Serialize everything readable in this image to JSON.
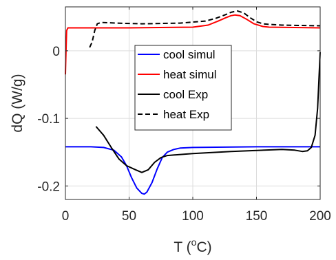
{
  "chart_data": {
    "type": "line",
    "title": "",
    "xlabel": {
      "prefix": "T (",
      "superscript": "o",
      "suffix": "C)"
    },
    "ylabel": "dQ (W/g)",
    "xlim": [
      0,
      200
    ],
    "ylim": [
      -0.22,
      0.065
    ],
    "xticks": [
      0,
      50,
      100,
      150,
      200
    ],
    "xtick_labels": [
      "0",
      "50",
      "100",
      "150",
      "200"
    ],
    "yticks": [
      0,
      -0.1,
      -0.2
    ],
    "ytick_labels": [
      "0",
      "-0.1",
      "-0.2"
    ],
    "grid": true,
    "legend_position": "center",
    "series": [
      {
        "name": "cool simul",
        "color": "#0000ff",
        "style": "solid",
        "x": [
          0,
          20,
          30,
          38,
          44,
          48,
          52,
          56,
          60,
          62,
          64,
          68,
          72,
          76,
          80,
          85,
          90,
          100,
          150,
          199,
          199.8
        ],
        "y": [
          -0.142,
          -0.142,
          -0.143,
          -0.147,
          -0.157,
          -0.17,
          -0.188,
          -0.203,
          -0.211,
          -0.212,
          -0.209,
          -0.195,
          -0.175,
          -0.158,
          -0.15,
          -0.146,
          -0.144,
          -0.143,
          -0.142,
          -0.142,
          -0.142
        ]
      },
      {
        "name": "heat simul",
        "color": "#ff0000",
        "style": "solid",
        "x": [
          0,
          0.5,
          1,
          2,
          5,
          50,
          100,
          112,
          120,
          126,
          130,
          133,
          137,
          142,
          148,
          155,
          160,
          200
        ],
        "y": [
          -0.035,
          0.0,
          0.03,
          0.034,
          0.034,
          0.034,
          0.035,
          0.038,
          0.044,
          0.049,
          0.052,
          0.053,
          0.052,
          0.047,
          0.04,
          0.036,
          0.035,
          0.034
        ]
      },
      {
        "name": "cool Exp",
        "color": "#000000",
        "style": "solid",
        "x": [
          24,
          30,
          36,
          42,
          48,
          55,
          60,
          65,
          70,
          75,
          80,
          100,
          130,
          170,
          180,
          186,
          190,
          193,
          196,
          198,
          199,
          200
        ],
        "y": [
          -0.112,
          -0.125,
          -0.143,
          -0.16,
          -0.17,
          -0.176,
          -0.18,
          -0.176,
          -0.165,
          -0.158,
          -0.155,
          -0.152,
          -0.149,
          -0.146,
          -0.147,
          -0.149,
          -0.148,
          -0.143,
          -0.125,
          -0.085,
          -0.045,
          -0.002
        ]
      },
      {
        "name": "heat Exp",
        "color": "#000000",
        "style": "dashed",
        "x": [
          19,
          21,
          23,
          25,
          28,
          40,
          60,
          90,
          110,
          118,
          125,
          130,
          135,
          140,
          145,
          150,
          155,
          160,
          170,
          200
        ],
        "y": [
          0.005,
          0.013,
          0.03,
          0.04,
          0.042,
          0.041,
          0.04,
          0.041,
          0.044,
          0.048,
          0.053,
          0.057,
          0.059,
          0.056,
          0.049,
          0.043,
          0.04,
          0.039,
          0.038,
          0.037
        ]
      }
    ]
  }
}
